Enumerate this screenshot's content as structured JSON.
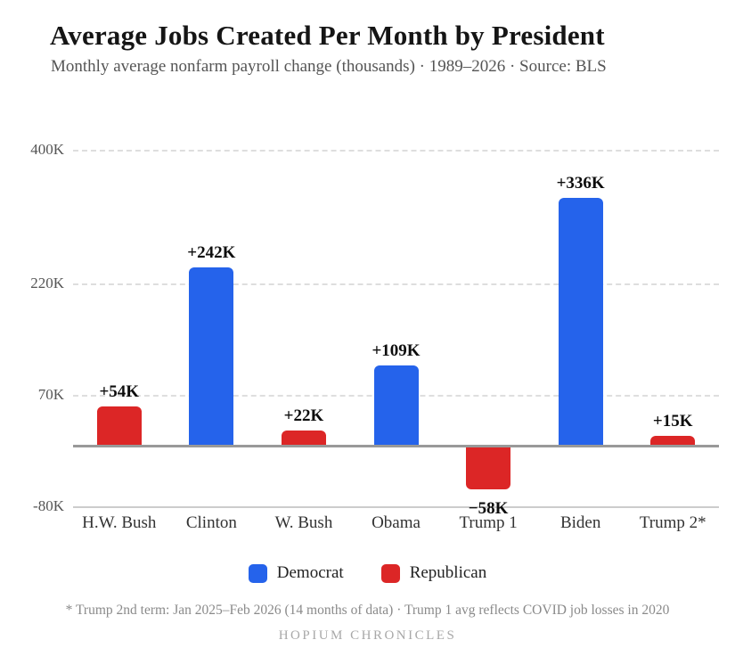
{
  "title": "Average Jobs Created Per Month by President",
  "subtitle": "Monthly average nonfarm payroll change (thousands) · 1989–2026 · Source: BLS",
  "footnote": "* Trump 2nd term: Jan 2025–Feb 2026 (14 months of data) · Trump 1 avg reflects COVID job losses in 2020",
  "brand": "HOPIUM CHRONICLES",
  "colors": {
    "democrat": "#2563eb",
    "republican": "#dc2626",
    "baseline": "#999999",
    "gridline": "#dedede"
  },
  "chart_data": {
    "type": "bar",
    "title": "Average Jobs Created Per Month by President",
    "subtitle": "Monthly average nonfarm payroll change (thousands) · 1989–2026 · Source: BLS",
    "categories": [
      "H.W. Bush",
      "Clinton",
      "W. Bush",
      "Obama",
      "Trump 1",
      "Biden",
      "Trump 2*"
    ],
    "values": [
      54,
      242,
      22,
      109,
      -58,
      336,
      15
    ],
    "value_labels": [
      "+54K",
      "+242K",
      "+22K",
      "+109K",
      "−58K",
      "+336K",
      "+15K"
    ],
    "parties": [
      "Republican",
      "Democrat",
      "Republican",
      "Democrat",
      "Republican",
      "Democrat",
      "Republican"
    ],
    "xlabel": "",
    "ylabel": "",
    "ylim": [
      -95,
      434
    ],
    "baseline": 0,
    "grid": "horizontal-dashed",
    "yticks": [
      {
        "value": 400,
        "label": "400K",
        "dashed": true
      },
      {
        "value": 220,
        "label": "220K",
        "dashed": true
      },
      {
        "value": 70,
        "label": "70K",
        "dashed": true
      },
      {
        "value": -80,
        "label": "-80K",
        "dashed": false
      }
    ],
    "legend_position": "bottom",
    "legend": [
      {
        "label": "Democrat",
        "color": "#2563eb"
      },
      {
        "label": "Republican",
        "color": "#dc2626"
      }
    ]
  }
}
